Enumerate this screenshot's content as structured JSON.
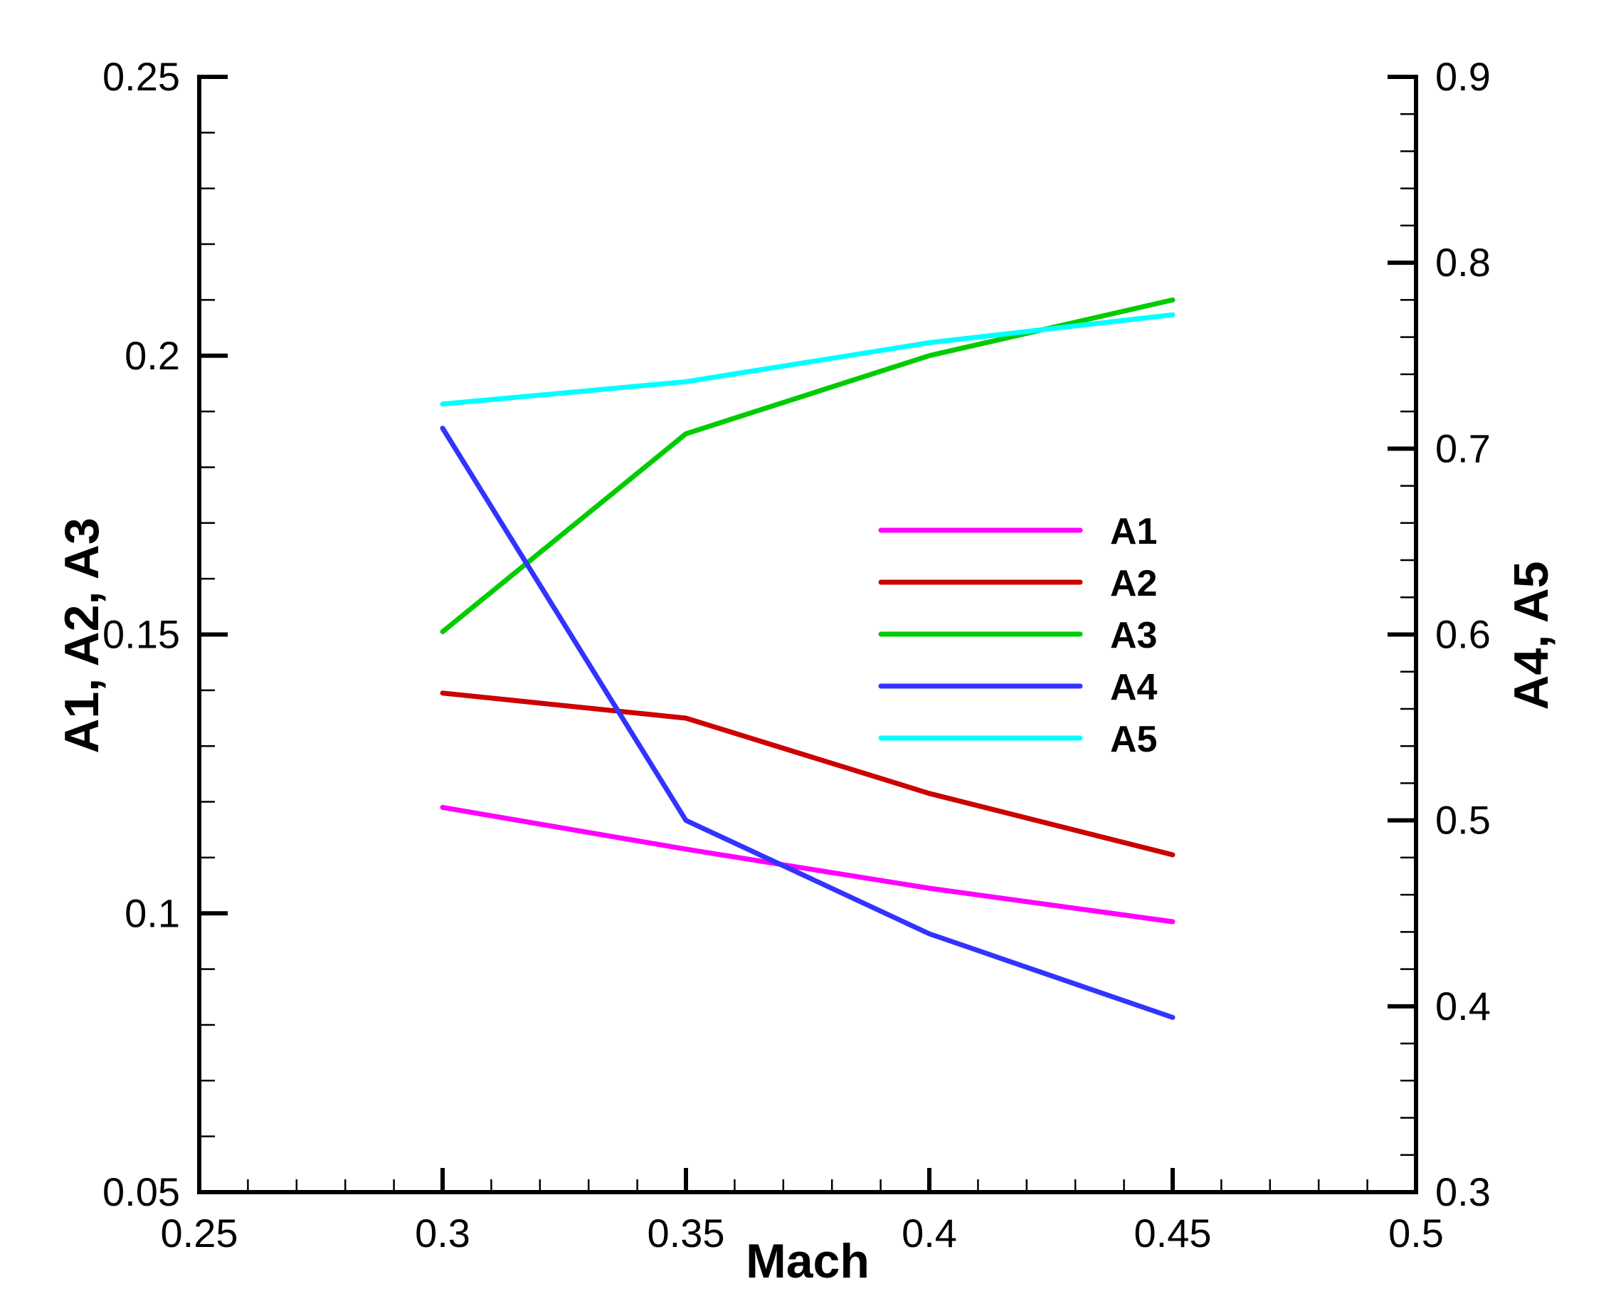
{
  "chart_data": {
    "type": "line",
    "xlabel": "Mach",
    "ylabel_left": "A1, A2, A3",
    "ylabel_right": "A4, A5",
    "xlim": [
      0.25,
      0.5
    ],
    "ylim_left": [
      0.05,
      0.25
    ],
    "ylim_right": [
      0.3,
      0.9
    ],
    "x_ticks": [
      "0.25",
      "0.3",
      "0.35",
      "0.4",
      "0.45",
      "0.5"
    ],
    "y_left_ticks": [
      "0.05",
      "0.1",
      "0.15",
      "0.2",
      "0.25"
    ],
    "y_right_ticks": [
      "0.3",
      "0.4",
      "0.5",
      "0.6",
      "0.7",
      "0.8",
      "0.9"
    ],
    "x": [
      0.3,
      0.35,
      0.4,
      0.45
    ],
    "series": [
      {
        "name": "A1",
        "axis": "left",
        "color": "#ff00ff",
        "values": [
          0.119,
          0.1115,
          0.1045,
          0.0985
        ]
      },
      {
        "name": "A2",
        "axis": "left",
        "color": "#cc0000",
        "values": [
          0.1395,
          0.135,
          0.1215,
          0.1105
        ]
      },
      {
        "name": "A3",
        "axis": "left",
        "color": "#00cc00",
        "values": [
          0.1505,
          0.186,
          0.2,
          0.21
        ]
      },
      {
        "name": "A4",
        "axis": "right",
        "color": "#3333ff",
        "values": [
          0.711,
          0.5,
          0.439,
          0.394
        ]
      },
      {
        "name": "A5",
        "axis": "right",
        "color": "#00ffff",
        "values": [
          0.724,
          0.736,
          0.757,
          0.772
        ]
      }
    ],
    "legend_position": "center-right",
    "grid": false
  }
}
